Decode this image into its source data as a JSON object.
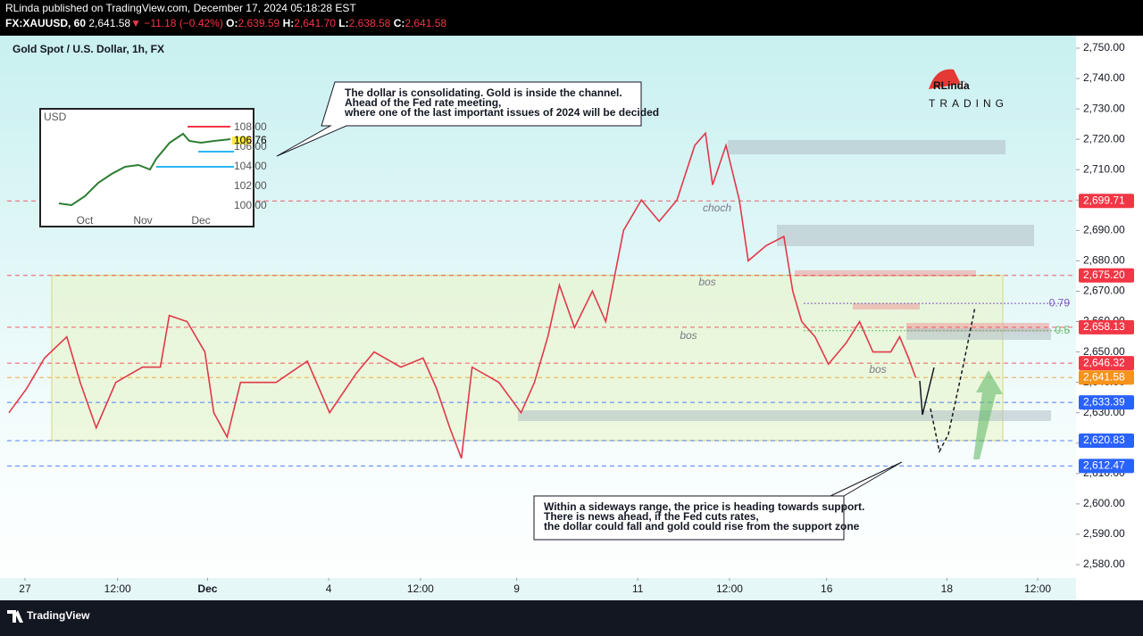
{
  "header": {
    "publisher": "RLinda published on TradingView.com, December 17, 2024 05:18:28 EST",
    "symbol": "FX:XAUUSD, 60",
    "price": "2,641.58",
    "change": "▼ −11.18 (−0.42%)",
    "o_label": "O:",
    "o": "2,639.59",
    "h_label": "H:",
    "h": "2,641.70",
    "l_label": "L:",
    "l": "2,638.58",
    "c_label": "C:",
    "c": "2,641.58"
  },
  "logo": {
    "name": "RLinda",
    "sub": "TRADING"
  },
  "inset": {
    "title": "USD",
    "price": "106.76",
    "ticks": [
      "108.00",
      "106.00",
      "104.00",
      "102.00",
      "100.00"
    ],
    "months": [
      "Oct",
      "Nov",
      "Dec"
    ]
  },
  "callouts": [
    [
      "The dollar is consolidating. Gold is inside the channel.",
      "Ahead of the Fed rate meeting,",
      "where one of the last important issues of 2024 will be decided"
    ],
    [
      "Within a sideways range, the price is heading towards support.",
      "There is news ahead, if the Fed cuts rates,",
      "the dollar could fall and gold could rise from the support zone"
    ]
  ],
  "annotations": [
    "choch",
    "bos",
    "bos",
    "bos"
  ],
  "footer": {
    "brand": "TradingView"
  },
  "chart_data": {
    "type": "line",
    "title": "Gold Spot / U.S. Dollar, 1h, FX",
    "color": "#e0394a",
    "x": [
      1,
      11,
      21,
      33.5,
      41,
      50,
      61,
      76,
      86,
      91,
      101,
      111,
      116,
      123.5,
      131,
      141,
      151,
      168.5,
      181,
      196,
      206,
      221,
      233.5,
      241,
      248.5,
      255,
      261,
      276,
      288.5,
      296,
      303.5,
      310,
      318.5,
      328.5,
      336,
      346,
      356,
      366,
      376,
      386,
      392,
      396,
      403.5,
      411,
      416,
      426,
      436,
      441,
      446,
      453.5,
      461,
      471,
      478.5,
      486,
      496,
      501,
      506,
      510
    ],
    "values": [
      2630,
      2638,
      2648,
      2655,
      2640,
      2625,
      2640,
      2645,
      2645,
      2662,
      2660,
      2650,
      2630,
      2622,
      2640,
      2640,
      2640,
      2647,
      2630,
      2643,
      2650,
      2645,
      2648,
      2638,
      2625,
      2615,
      2645,
      2640,
      2630,
      2640,
      2655,
      2672,
      2658,
      2670,
      2660,
      2690,
      2700,
      2693,
      2700,
      2718,
      2722,
      2705,
      2718,
      2700,
      2680,
      2685,
      2688,
      2670,
      2660,
      2655,
      2646,
      2653,
      2660,
      2650,
      2650,
      2655,
      2648,
      2641.58
    ],
    "xlim": [
      0,
      600
    ],
    "xticks": [
      {
        "value": 10,
        "label": "27"
      },
      {
        "value": 62,
        "label": "12:00"
      },
      {
        "value": 112.5,
        "label": "Dec"
      },
      {
        "value": 180.5,
        "label": "4"
      },
      {
        "value": 232,
        "label": "12:00"
      },
      {
        "value": 286,
        "label": "9"
      },
      {
        "value": 354,
        "label": "11"
      },
      {
        "value": 405.5,
        "label": "12:00"
      },
      {
        "value": 460,
        "label": "16"
      },
      {
        "value": 527.5,
        "label": "18"
      },
      {
        "value": 578.5,
        "label": "12:00"
      }
    ],
    "ylim": [
      2575.6,
      2754.1
    ],
    "yticks": [
      {
        "value": 2580,
        "label": "2,580.00"
      },
      {
        "value": 2590,
        "label": "2,590.00"
      },
      {
        "value": 2600,
        "label": "2,600.00"
      },
      {
        "value": 2610,
        "label": "2,610.00"
      },
      {
        "value": 2620,
        "label": "2,620.00"
      },
      {
        "value": 2630,
        "label": "2,630.00"
      },
      {
        "value": 2640,
        "label": "2,640.00"
      },
      {
        "value": 2650,
        "label": "2,650.00"
      },
      {
        "value": 2660,
        "label": "2,660.00"
      },
      {
        "value": 2670,
        "label": "2,670.00"
      },
      {
        "value": 2680,
        "label": "2,680.00"
      },
      {
        "value": 2690,
        "label": "2,690.00"
      },
      {
        "value": 2700,
        "label": "2,700.00"
      },
      {
        "value": 2710,
        "label": "2,710.00"
      },
      {
        "value": 2720,
        "label": "2,720.00"
      },
      {
        "value": 2730,
        "label": "2,730.00"
      },
      {
        "value": 2740,
        "label": "2,740.00"
      },
      {
        "value": 2750,
        "label": "2,750.00"
      }
    ],
    "price_levels": [
      {
        "value": 2699.71,
        "label": "2,699.71",
        "color": "#f23645"
      },
      {
        "value": 2675.2,
        "label": "2,675.20",
        "color": "#f23645"
      },
      {
        "value": 2658.13,
        "label": "2,658.13",
        "color": "#f23645"
      },
      {
        "value": 2646.32,
        "label": "2,646.32",
        "color": "#f23645"
      },
      {
        "value": 2641.58,
        "label": "2,641.58",
        "color": "#f7931a"
      },
      {
        "value": 2633.39,
        "label": "2,633.39",
        "color": "#2962ff"
      },
      {
        "value": 2620.83,
        "label": "2,620.83",
        "color": "#2962ff"
      },
      {
        "value": 2612.47,
        "label": "2,612.47",
        "color": "#2962ff"
      }
    ],
    "fib_levels": [
      {
        "value": 2666,
        "label": "0.79",
        "color": "#7e57c2"
      },
      {
        "value": 2657,
        "label": "0.5",
        "color": "#66bb6a"
      }
    ]
  }
}
